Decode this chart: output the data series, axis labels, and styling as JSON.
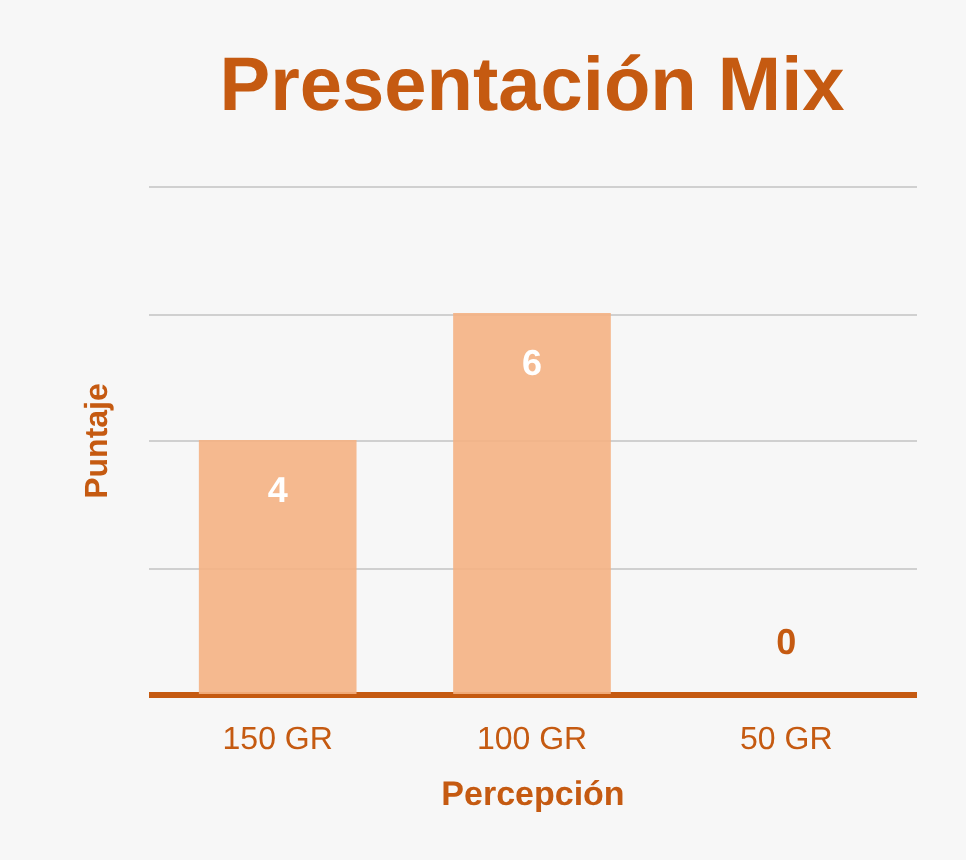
{
  "chart_data": {
    "type": "bar",
    "title": "Presentación Mix",
    "xlabel": "Percepción",
    "ylabel": "Puntaje",
    "categories": [
      "150 GR",
      "100 GR",
      "50 GR"
    ],
    "values": [
      4,
      6,
      0
    ],
    "color": "#f4b183",
    "ylim": [
      0,
      8
    ],
    "yticks": [
      {
        "value": 0,
        "label": null
      },
      {
        "value": 2,
        "label": null
      },
      {
        "value": 4,
        "label": null
      },
      {
        "value": 6,
        "label": null
      },
      {
        "value": 8,
        "label": null
      }
    ],
    "grid": "y",
    "tick_labels": "x",
    "data_labels": true,
    "legend": false
  }
}
